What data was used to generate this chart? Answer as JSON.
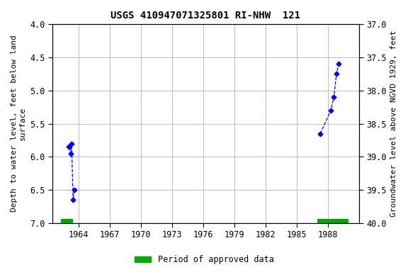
{
  "title": "USGS 410947071325801 RI-NHW  121",
  "ylabel_left": "Depth to water level, feet below land\nsurface",
  "ylabel_right": "Groundwater level above NGVD 1929, feet",
  "xlim": [
    1961.5,
    1991.0
  ],
  "ylim_left": [
    4.0,
    7.0
  ],
  "ylim_right": [
    40.0,
    37.0
  ],
  "xticks": [
    1964,
    1967,
    1970,
    1973,
    1976,
    1979,
    1982,
    1985,
    1988
  ],
  "yticks_left": [
    4.0,
    4.5,
    5.0,
    5.5,
    6.0,
    6.5,
    7.0
  ],
  "yticks_right": [
    40.0,
    39.5,
    39.0,
    38.5,
    38.0,
    37.5,
    37.0
  ],
  "data_x1": [
    1963.1,
    1963.25,
    1963.35,
    1963.5,
    1963.6
  ],
  "data_y1": [
    5.85,
    5.95,
    5.8,
    6.65,
    6.5
  ],
  "data_x2": [
    1987.3,
    1988.3,
    1988.6,
    1988.85,
    1989.05
  ],
  "data_y2": [
    5.65,
    5.3,
    5.1,
    4.75,
    4.6
  ],
  "approved_bar1_xmin": 1962.3,
  "approved_bar1_xmax": 1963.5,
  "approved_bar2_xmin": 1987.0,
  "approved_bar2_xmax": 1990.0,
  "bar_y": 6.97,
  "bar_thickness": 0.06,
  "line_color": "#0000FF",
  "approved_color": "#00AA00",
  "background_color": "#ffffff",
  "grid_color": "#bbbbbb",
  "title_fontsize": 10,
  "label_fontsize": 8,
  "tick_fontsize": 8.5
}
